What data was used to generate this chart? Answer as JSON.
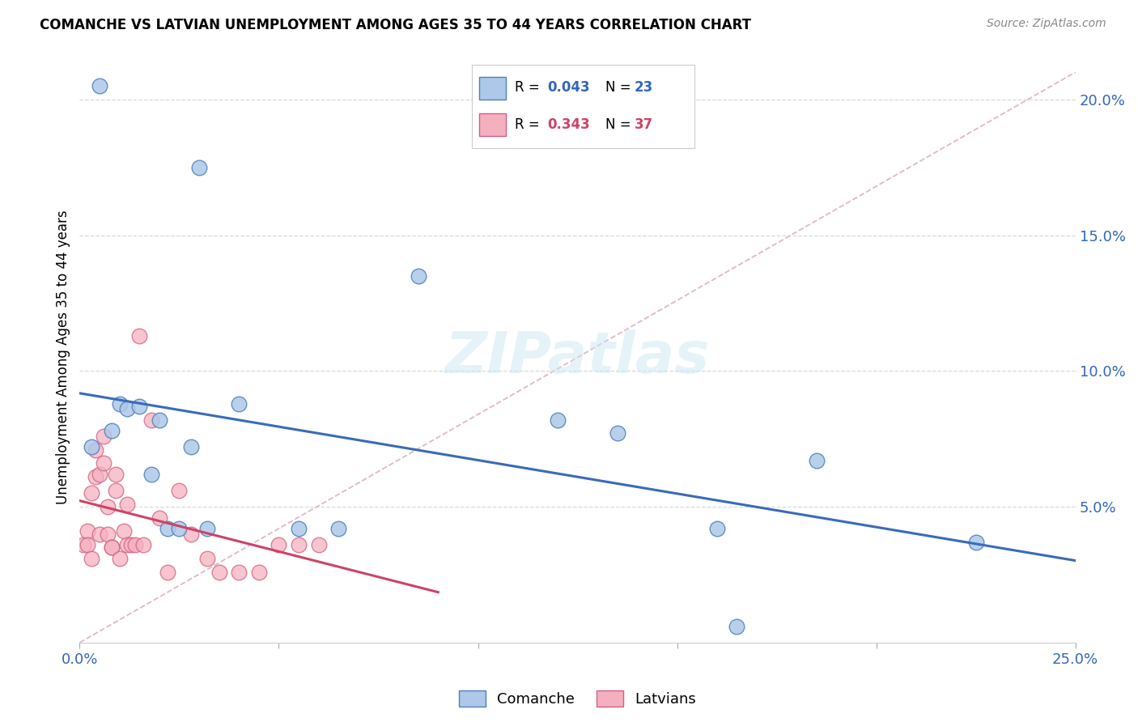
{
  "title": "COMANCHE VS LATVIAN UNEMPLOYMENT AMONG AGES 35 TO 44 YEARS CORRELATION CHART",
  "source": "Source: ZipAtlas.com",
  "ylabel": "Unemployment Among Ages 35 to 44 years",
  "xlim": [
    0.0,
    0.25
  ],
  "ylim": [
    0.0,
    0.21
  ],
  "background_color": "#ffffff",
  "grid_color": "#d8d8d8",
  "comanche_color": "#adc8e8",
  "latvian_color": "#f5b0c0",
  "comanche_edge": "#4f7fbf",
  "latvian_edge": "#d06080",
  "trend_comanche_color": "#3a6bba",
  "trend_latvian_color": "#cc4466",
  "diag_color": "#e0b8c8",
  "comanche_x": [
    0.003,
    0.008,
    0.01,
    0.012,
    0.015,
    0.018,
    0.02,
    0.022,
    0.025,
    0.028,
    0.032,
    0.04,
    0.055,
    0.065,
    0.085,
    0.12,
    0.135,
    0.16,
    0.165,
    0.185,
    0.225,
    0.005,
    0.03
  ],
  "comanche_y": [
    0.072,
    0.078,
    0.088,
    0.086,
    0.087,
    0.062,
    0.082,
    0.042,
    0.042,
    0.072,
    0.042,
    0.088,
    0.042,
    0.042,
    0.135,
    0.082,
    0.077,
    0.042,
    0.006,
    0.067,
    0.037,
    0.205,
    0.175
  ],
  "latvian_x": [
    0.001,
    0.002,
    0.002,
    0.003,
    0.003,
    0.004,
    0.004,
    0.005,
    0.005,
    0.006,
    0.006,
    0.007,
    0.007,
    0.008,
    0.008,
    0.009,
    0.009,
    0.01,
    0.011,
    0.012,
    0.012,
    0.013,
    0.014,
    0.015,
    0.016,
    0.018,
    0.02,
    0.022,
    0.025,
    0.028,
    0.032,
    0.035,
    0.04,
    0.045,
    0.05,
    0.055,
    0.06
  ],
  "latvian_y": [
    0.036,
    0.041,
    0.036,
    0.031,
    0.055,
    0.071,
    0.061,
    0.04,
    0.062,
    0.066,
    0.076,
    0.04,
    0.05,
    0.035,
    0.035,
    0.056,
    0.062,
    0.031,
    0.041,
    0.051,
    0.036,
    0.036,
    0.036,
    0.113,
    0.036,
    0.082,
    0.046,
    0.026,
    0.056,
    0.04,
    0.031,
    0.026,
    0.026,
    0.026,
    0.036,
    0.036,
    0.036
  ],
  "latvian_trend_x0": 0.0,
  "latvian_trend_x1": 0.09,
  "comanche_trend_x0": 0.0,
  "comanche_trend_x1": 0.25
}
